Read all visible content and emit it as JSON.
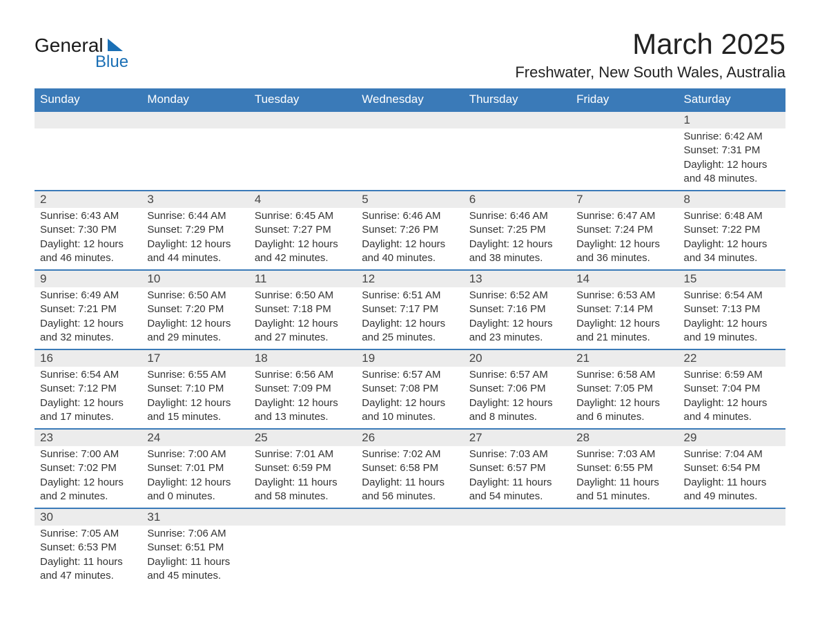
{
  "logo": {
    "line1": "General",
    "line2": "Blue"
  },
  "title": "March 2025",
  "location": "Freshwater, New South Wales, Australia",
  "colors": {
    "header_bg": "#3a7ab8",
    "header_text": "#ffffff",
    "daynum_bg": "#ececec",
    "border_top": "#3a7ab8",
    "logo_accent": "#1a6fb5",
    "body_text": "#333333",
    "page_bg": "#ffffff"
  },
  "weekdays": [
    "Sunday",
    "Monday",
    "Tuesday",
    "Wednesday",
    "Thursday",
    "Friday",
    "Saturday"
  ],
  "grid_start_weekday": 6,
  "days": [
    {
      "n": 1,
      "sunrise": "6:42 AM",
      "sunset": "7:31 PM",
      "daylight": "12 hours and 48 minutes."
    },
    {
      "n": 2,
      "sunrise": "6:43 AM",
      "sunset": "7:30 PM",
      "daylight": "12 hours and 46 minutes."
    },
    {
      "n": 3,
      "sunrise": "6:44 AM",
      "sunset": "7:29 PM",
      "daylight": "12 hours and 44 minutes."
    },
    {
      "n": 4,
      "sunrise": "6:45 AM",
      "sunset": "7:27 PM",
      "daylight": "12 hours and 42 minutes."
    },
    {
      "n": 5,
      "sunrise": "6:46 AM",
      "sunset": "7:26 PM",
      "daylight": "12 hours and 40 minutes."
    },
    {
      "n": 6,
      "sunrise": "6:46 AM",
      "sunset": "7:25 PM",
      "daylight": "12 hours and 38 minutes."
    },
    {
      "n": 7,
      "sunrise": "6:47 AM",
      "sunset": "7:24 PM",
      "daylight": "12 hours and 36 minutes."
    },
    {
      "n": 8,
      "sunrise": "6:48 AM",
      "sunset": "7:22 PM",
      "daylight": "12 hours and 34 minutes."
    },
    {
      "n": 9,
      "sunrise": "6:49 AM",
      "sunset": "7:21 PM",
      "daylight": "12 hours and 32 minutes."
    },
    {
      "n": 10,
      "sunrise": "6:50 AM",
      "sunset": "7:20 PM",
      "daylight": "12 hours and 29 minutes."
    },
    {
      "n": 11,
      "sunrise": "6:50 AM",
      "sunset": "7:18 PM",
      "daylight": "12 hours and 27 minutes."
    },
    {
      "n": 12,
      "sunrise": "6:51 AM",
      "sunset": "7:17 PM",
      "daylight": "12 hours and 25 minutes."
    },
    {
      "n": 13,
      "sunrise": "6:52 AM",
      "sunset": "7:16 PM",
      "daylight": "12 hours and 23 minutes."
    },
    {
      "n": 14,
      "sunrise": "6:53 AM",
      "sunset": "7:14 PM",
      "daylight": "12 hours and 21 minutes."
    },
    {
      "n": 15,
      "sunrise": "6:54 AM",
      "sunset": "7:13 PM",
      "daylight": "12 hours and 19 minutes."
    },
    {
      "n": 16,
      "sunrise": "6:54 AM",
      "sunset": "7:12 PM",
      "daylight": "12 hours and 17 minutes."
    },
    {
      "n": 17,
      "sunrise": "6:55 AM",
      "sunset": "7:10 PM",
      "daylight": "12 hours and 15 minutes."
    },
    {
      "n": 18,
      "sunrise": "6:56 AM",
      "sunset": "7:09 PM",
      "daylight": "12 hours and 13 minutes."
    },
    {
      "n": 19,
      "sunrise": "6:57 AM",
      "sunset": "7:08 PM",
      "daylight": "12 hours and 10 minutes."
    },
    {
      "n": 20,
      "sunrise": "6:57 AM",
      "sunset": "7:06 PM",
      "daylight": "12 hours and 8 minutes."
    },
    {
      "n": 21,
      "sunrise": "6:58 AM",
      "sunset": "7:05 PM",
      "daylight": "12 hours and 6 minutes."
    },
    {
      "n": 22,
      "sunrise": "6:59 AM",
      "sunset": "7:04 PM",
      "daylight": "12 hours and 4 minutes."
    },
    {
      "n": 23,
      "sunrise": "7:00 AM",
      "sunset": "7:02 PM",
      "daylight": "12 hours and 2 minutes."
    },
    {
      "n": 24,
      "sunrise": "7:00 AM",
      "sunset": "7:01 PM",
      "daylight": "12 hours and 0 minutes."
    },
    {
      "n": 25,
      "sunrise": "7:01 AM",
      "sunset": "6:59 PM",
      "daylight": "11 hours and 58 minutes."
    },
    {
      "n": 26,
      "sunrise": "7:02 AM",
      "sunset": "6:58 PM",
      "daylight": "11 hours and 56 minutes."
    },
    {
      "n": 27,
      "sunrise": "7:03 AM",
      "sunset": "6:57 PM",
      "daylight": "11 hours and 54 minutes."
    },
    {
      "n": 28,
      "sunrise": "7:03 AM",
      "sunset": "6:55 PM",
      "daylight": "11 hours and 51 minutes."
    },
    {
      "n": 29,
      "sunrise": "7:04 AM",
      "sunset": "6:54 PM",
      "daylight": "11 hours and 49 minutes."
    },
    {
      "n": 30,
      "sunrise": "7:05 AM",
      "sunset": "6:53 PM",
      "daylight": "11 hours and 47 minutes."
    },
    {
      "n": 31,
      "sunrise": "7:06 AM",
      "sunset": "6:51 PM",
      "daylight": "11 hours and 45 minutes."
    }
  ],
  "labels": {
    "sunrise": "Sunrise:",
    "sunset": "Sunset:",
    "daylight": "Daylight:"
  }
}
